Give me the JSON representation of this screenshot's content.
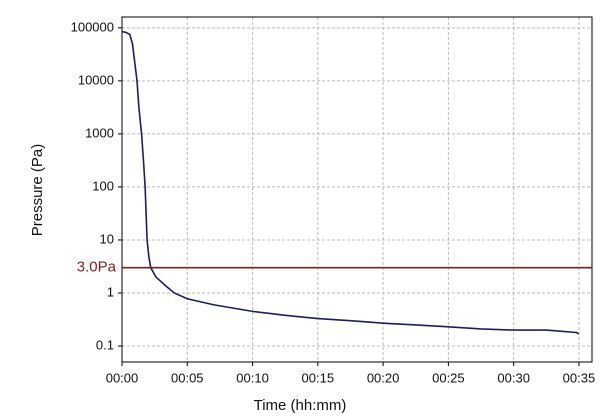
{
  "chart_data": {
    "type": "line",
    "xlabel": "Time (hh:mm)",
    "ylabel": "Pressure (Pa)",
    "x": [
      0,
      0.3,
      0.6,
      0.8,
      1.0,
      1.15,
      1.3,
      1.5,
      1.65,
      1.77,
      1.85,
      1.92,
      2.05,
      2.2,
      2.6,
      3.3,
      4,
      5,
      7,
      10,
      12.5,
      15,
      17.5,
      20,
      22.5,
      25,
      27.5,
      30,
      32.5,
      34.8,
      35
    ],
    "series": [
      {
        "color": "#1c1c6b",
        "values": [
          85000,
          82000,
          75000,
          50000,
          20000,
          10000,
          3000,
          1000,
          300,
          100,
          30,
          10,
          5,
          3,
          2,
          1.4,
          1.0,
          0.78,
          0.6,
          0.45,
          0.38,
          0.33,
          0.3,
          0.27,
          0.25,
          0.23,
          0.21,
          0.2,
          0.2,
          0.18,
          0.17
        ]
      }
    ],
    "xlim": [
      0,
      36
    ],
    "xticks": [
      {
        "value": 0,
        "label": "00:00"
      },
      {
        "value": 5,
        "label": "00:05"
      },
      {
        "value": 10,
        "label": "00:10"
      },
      {
        "value": 15,
        "label": "00:15"
      },
      {
        "value": 20,
        "label": "00:20"
      },
      {
        "value": 25,
        "label": "00:25"
      },
      {
        "value": 30,
        "label": "00:30"
      },
      {
        "value": 35,
        "label": "00:35"
      }
    ],
    "ylim": [
      0.05,
      160000
    ],
    "ylog": true,
    "yticks": [
      0.1,
      1,
      10,
      100,
      1000,
      10000,
      100000
    ],
    "grid": true,
    "threshold": {
      "value": 3.0,
      "label": "3.0Pa",
      "color": "#8b1a1a"
    }
  }
}
